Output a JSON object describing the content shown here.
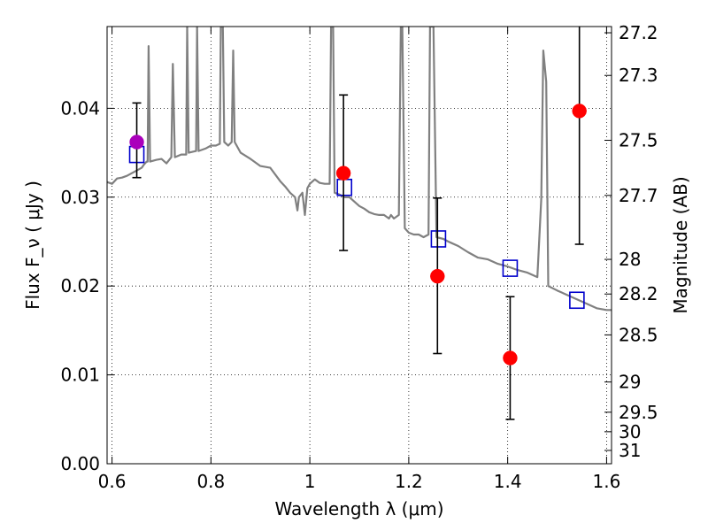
{
  "chart_data": {
    "type": "scatter",
    "xlabel": "Wavelength λ (μm)",
    "ylabel": "Flux F_ν ( μJy )",
    "ylabel_right": "Magnitude (AB)",
    "xlim": [
      0.59,
      1.61
    ],
    "ylim": [
      0.0,
      0.0492
    ],
    "grid": "dotted",
    "x_ticks": [
      0.6,
      0.8,
      1.0,
      1.2,
      1.4,
      1.6
    ],
    "x_tick_labels": [
      "0.6",
      "0.8",
      "1",
      "1.2",
      "1.4",
      "1.6"
    ],
    "y_ticks": [
      0.0,
      0.01,
      0.02,
      0.03,
      0.04
    ],
    "y_tick_labels": [
      "0.00",
      "0.01",
      "0.02",
      "0.03",
      "0.04"
    ],
    "right_ticks": [
      {
        "label": "27.2",
        "flux": 0.0485
      },
      {
        "label": "27.3",
        "flux": 0.0437
      },
      {
        "label": "27.5",
        "flux": 0.0364
      },
      {
        "label": "27.7",
        "flux": 0.0302
      },
      {
        "label": "28",
        "flux": 0.023
      },
      {
        "label": "28.2",
        "flux": 0.0191
      },
      {
        "label": "28.5",
        "flux": 0.0145
      },
      {
        "label": "29",
        "flux": 0.0092
      },
      {
        "label": "29.5",
        "flux": 0.0058
      },
      {
        "label": "30",
        "flux": 0.0036
      },
      {
        "label": "31",
        "flux": 0.0015
      }
    ],
    "series": [
      {
        "kind": "model_spectrum",
        "color": "#808080",
        "points": [
          [
            0.59,
            0.0317
          ],
          [
            0.6,
            0.0315
          ],
          [
            0.61,
            0.0321
          ],
          [
            0.62,
            0.0322
          ],
          [
            0.63,
            0.0324
          ],
          [
            0.64,
            0.0327
          ],
          [
            0.65,
            0.033
          ],
          [
            0.66,
            0.0333
          ],
          [
            0.665,
            0.0337
          ],
          [
            0.67,
            0.034
          ],
          [
            0.672,
            0.034
          ],
          [
            0.674,
            0.047
          ],
          [
            0.677,
            0.034
          ],
          [
            0.69,
            0.0342
          ],
          [
            0.7,
            0.0343
          ],
          [
            0.71,
            0.0338
          ],
          [
            0.72,
            0.0345
          ],
          [
            0.723,
            0.045
          ],
          [
            0.727,
            0.0345
          ],
          [
            0.74,
            0.0348
          ],
          [
            0.75,
            0.0348
          ],
          [
            0.752,
            0.0492
          ],
          [
            0.755,
            0.035
          ],
          [
            0.77,
            0.0352
          ],
          [
            0.772,
            0.0492
          ],
          [
            0.775,
            0.0352
          ],
          [
            0.79,
            0.0355
          ],
          [
            0.8,
            0.0358
          ],
          [
            0.81,
            0.0358
          ],
          [
            0.818,
            0.036
          ],
          [
            0.82,
            0.0492
          ],
          [
            0.824,
            0.0492
          ],
          [
            0.827,
            0.0362
          ],
          [
            0.835,
            0.0358
          ],
          [
            0.842,
            0.0362
          ],
          [
            0.845,
            0.0465
          ],
          [
            0.848,
            0.0362
          ],
          [
            0.86,
            0.035
          ],
          [
            0.88,
            0.0343
          ],
          [
            0.9,
            0.0335
          ],
          [
            0.92,
            0.0333
          ],
          [
            0.94,
            0.0318
          ],
          [
            0.95,
            0.0312
          ],
          [
            0.96,
            0.0305
          ],
          [
            0.97,
            0.03
          ],
          [
            0.975,
            0.0285
          ],
          [
            0.978,
            0.03
          ],
          [
            0.985,
            0.0305
          ],
          [
            0.99,
            0.028
          ],
          [
            0.995,
            0.031
          ],
          [
            1.0,
            0.0315
          ],
          [
            1.01,
            0.032
          ],
          [
            1.02,
            0.0316
          ],
          [
            1.03,
            0.0315
          ],
          [
            1.04,
            0.0315
          ],
          [
            1.043,
            0.0492
          ],
          [
            1.047,
            0.0492
          ],
          [
            1.05,
            0.0305
          ],
          [
            1.06,
            0.0303
          ],
          [
            1.07,
            0.03
          ],
          [
            1.08,
            0.03
          ],
          [
            1.09,
            0.0295
          ],
          [
            1.1,
            0.029
          ],
          [
            1.11,
            0.0287
          ],
          [
            1.12,
            0.0283
          ],
          [
            1.13,
            0.0281
          ],
          [
            1.14,
            0.028
          ],
          [
            1.15,
            0.028
          ],
          [
            1.16,
            0.0276
          ],
          [
            1.164,
            0.028
          ],
          [
            1.17,
            0.0276
          ],
          [
            1.18,
            0.028
          ],
          [
            1.184,
            0.0492
          ],
          [
            1.187,
            0.0492
          ],
          [
            1.192,
            0.0265
          ],
          [
            1.2,
            0.026
          ],
          [
            1.21,
            0.0258
          ],
          [
            1.22,
            0.0258
          ],
          [
            1.23,
            0.0255
          ],
          [
            1.24,
            0.0258
          ],
          [
            1.243,
            0.0492
          ],
          [
            1.25,
            0.0492
          ],
          [
            1.256,
            0.0255
          ],
          [
            1.27,
            0.0253
          ],
          [
            1.28,
            0.025
          ],
          [
            1.3,
            0.0245
          ],
          [
            1.32,
            0.0238
          ],
          [
            1.34,
            0.0232
          ],
          [
            1.36,
            0.023
          ],
          [
            1.38,
            0.0225
          ],
          [
            1.4,
            0.0222
          ],
          [
            1.42,
            0.0218
          ],
          [
            1.44,
            0.0215
          ],
          [
            1.46,
            0.021
          ],
          [
            1.468,
            0.0298
          ],
          [
            1.472,
            0.0465
          ],
          [
            1.478,
            0.043
          ],
          [
            1.482,
            0.02
          ],
          [
            1.5,
            0.0195
          ],
          [
            1.52,
            0.019
          ],
          [
            1.54,
            0.0185
          ],
          [
            1.56,
            0.018
          ],
          [
            1.58,
            0.0175
          ],
          [
            1.6,
            0.0173
          ],
          [
            1.61,
            0.0173
          ]
        ]
      },
      {
        "kind": "model_photometry",
        "marker": "open-square",
        "color": "#0000cc",
        "points": [
          [
            0.65,
            0.0348
          ],
          [
            1.07,
            0.0311
          ],
          [
            1.26,
            0.0253
          ],
          [
            1.405,
            0.022
          ],
          [
            1.54,
            0.0184
          ]
        ]
      },
      {
        "kind": "observed",
        "marker": "filled-circle",
        "points": [
          {
            "x": 0.65,
            "y": 0.0362,
            "lo": 0.0322,
            "hi": 0.0406,
            "color": "#aa00bb"
          },
          {
            "x": 1.068,
            "y": 0.0327,
            "lo": 0.024,
            "hi": 0.0415,
            "color": "#ff0000"
          },
          {
            "x": 1.258,
            "y": 0.0211,
            "lo": 0.0124,
            "hi": 0.0299,
            "color": "#ff0000"
          },
          {
            "x": 1.405,
            "y": 0.0119,
            "lo": 0.005,
            "hi": 0.0188,
            "color": "#ff0000"
          },
          {
            "x": 1.545,
            "y": 0.0397,
            "lo": 0.0247,
            "hi": 0.0492,
            "color": "#ff0000"
          }
        ]
      }
    ]
  }
}
